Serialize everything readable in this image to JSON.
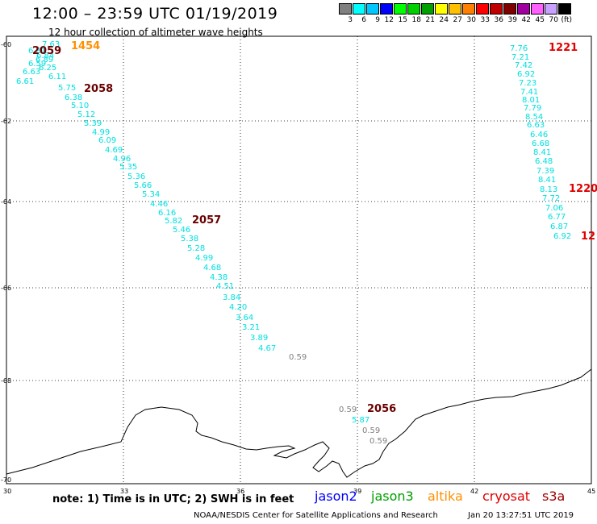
{
  "title": "12:00 – 23:59 UTC 01/19/2019",
  "subtitle": "12 hour collection of altimeter wave heights",
  "legend": {
    "colors": [
      "#808080",
      "#00ffff",
      "#00c8ff",
      "#0000ff",
      "#00ff00",
      "#00d000",
      "#00a000",
      "#ffff00",
      "#ffc000",
      "#ff8000",
      "#ff0000",
      "#c00000",
      "#800000",
      "#a000a0",
      "#ff60ff",
      "#c8a0ff",
      "#000000"
    ],
    "labels": [
      "3",
      "6",
      "9",
      "12",
      "15",
      "18",
      "21",
      "24",
      "27",
      "30",
      "33",
      "36",
      "39",
      "42",
      "45",
      "70",
      "(ft)"
    ]
  },
  "axes": {
    "lat_labels": [
      "-60",
      "-62",
      "-64",
      "-66",
      "-68",
      "-70"
    ],
    "lon_labels": [
      "30",
      "33",
      "36",
      "39",
      "42",
      "45"
    ]
  },
  "tracks": {
    "west": [
      {
        "v": "7.63",
        "c": "#00e0e0"
      },
      {
        "v": "6.81",
        "c": "#00e0e0"
      },
      {
        "v": "6.84",
        "c": "#00e0e0"
      },
      {
        "v": "6.89",
        "c": "#00e0e0"
      },
      {
        "v": "6.59",
        "c": "#00e0e0"
      },
      {
        "v": "6.25",
        "c": "#00e0e0"
      },
      {
        "v": "6.63",
        "c": "#00e0e0"
      },
      {
        "v": "6.11",
        "c": "#00e0e0"
      },
      {
        "v": "6.61",
        "c": "#00e0e0"
      },
      {
        "v": "5.75",
        "c": "#00e0e0"
      },
      {
        "v": "6.38",
        "c": "#00e0e0"
      },
      {
        "v": "5.10",
        "c": "#00e0e0"
      },
      {
        "v": "5.12",
        "c": "#00e0e0"
      },
      {
        "v": "5.39",
        "c": "#00e0e0"
      },
      {
        "v": "4.99",
        "c": "#00e0e0"
      },
      {
        "v": "6.09",
        "c": "#00e0e0"
      },
      {
        "v": "4.69",
        "c": "#00e0e0"
      },
      {
        "v": "4.96",
        "c": "#00e0e0"
      },
      {
        "v": "5.35",
        "c": "#00e0e0"
      },
      {
        "v": "5.36",
        "c": "#00e0e0"
      },
      {
        "v": "5.66",
        "c": "#00e0e0"
      },
      {
        "v": "5.34",
        "c": "#00e0e0"
      },
      {
        "v": "4.46",
        "c": "#00e0e0"
      },
      {
        "v": "6.16",
        "c": "#00e0e0"
      },
      {
        "v": "5.82",
        "c": "#00e0e0"
      },
      {
        "v": "5.46",
        "c": "#00e0e0"
      },
      {
        "v": "5.38",
        "c": "#00e0e0"
      },
      {
        "v": "5.28",
        "c": "#00e0e0"
      },
      {
        "v": "4.99",
        "c": "#00e0e0"
      },
      {
        "v": "4.68",
        "c": "#00e0e0"
      },
      {
        "v": "4.38",
        "c": "#00e0e0"
      },
      {
        "v": "4.51",
        "c": "#00e0e0"
      },
      {
        "v": "3.84",
        "c": "#00e0e0"
      },
      {
        "v": "4.20",
        "c": "#00e0e0"
      },
      {
        "v": "3.64",
        "c": "#00e0e0"
      },
      {
        "v": "3.21",
        "c": "#00e0e0"
      },
      {
        "v": "3.89",
        "c": "#00e0e0"
      },
      {
        "v": "4.67",
        "c": "#00e0e0"
      },
      {
        "v": "0.59",
        "c": "#808080"
      }
    ],
    "east": [
      {
        "v": "7.76",
        "c": "#00e0e0"
      },
      {
        "v": "7.21",
        "c": "#00e0e0"
      },
      {
        "v": "7.42",
        "c": "#00e0e0"
      },
      {
        "v": "6.92",
        "c": "#00e0e0"
      },
      {
        "v": "7.23",
        "c": "#00e0e0"
      },
      {
        "v": "7.41",
        "c": "#00e0e0"
      },
      {
        "v": "8.01",
        "c": "#00e0e0"
      },
      {
        "v": "7.79",
        "c": "#00e0e0"
      },
      {
        "v": "8.54",
        "c": "#00e0e0"
      },
      {
        "v": "6.63",
        "c": "#00e0e0"
      },
      {
        "v": "6.46",
        "c": "#00e0e0"
      },
      {
        "v": "6.68",
        "c": "#00e0e0"
      },
      {
        "v": "8.41",
        "c": "#00e0e0"
      },
      {
        "v": "6.48",
        "c": "#00e0e0"
      },
      {
        "v": "7.39",
        "c": "#00e0e0"
      },
      {
        "v": "8.41",
        "c": "#00e0e0"
      },
      {
        "v": "8.13",
        "c": "#00e0e0"
      },
      {
        "v": "7.72",
        "c": "#00e0e0"
      },
      {
        "v": "7.06",
        "c": "#00e0e0"
      },
      {
        "v": "6.77",
        "c": "#00e0e0"
      },
      {
        "v": "6.87",
        "c": "#00e0e0"
      },
      {
        "v": "6.92",
        "c": "#00e0e0"
      }
    ],
    "south": [
      {
        "v": "0.59",
        "c": "#808080"
      },
      {
        "v": "5.87",
        "c": "#00e0e0"
      },
      {
        "v": "0.59",
        "c": "#808080"
      },
      {
        "v": "0.59",
        "c": "#808080"
      }
    ]
  },
  "times": {
    "t1454": "1454",
    "t2059": "2059",
    "t2058": "2058",
    "t2057": "2057",
    "t2056": "2056",
    "t1221": "1221",
    "t1220": "1220",
    "t12": "12"
  },
  "note": "note: 1) Time is in UTC; 2) SWH is in feet",
  "satellites": [
    {
      "name": "jason2",
      "color": "#0000ff"
    },
    {
      "name": "jason3",
      "color": "#00a000"
    },
    {
      "name": "altika",
      "color": "#ff9000"
    },
    {
      "name": "cryosat",
      "color": "#e00000"
    },
    {
      "name": "s3a",
      "color": "#a00000"
    }
  ],
  "credit": "NOAA/NESDIS Center for Satellite Applications and Research",
  "stamp": "Jan 20 13:27:51 UTC 2019"
}
